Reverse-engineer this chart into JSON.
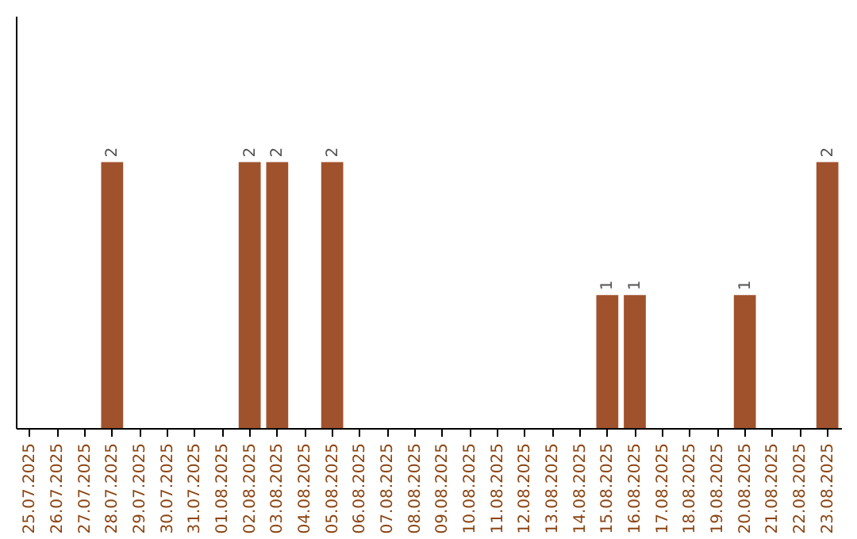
{
  "chart_data": {
    "type": "bar",
    "categories": [
      "25.07.2025",
      "26.07.2025",
      "27.07.2025",
      "28.07.2025",
      "29.07.2025",
      "30.07.2025",
      "31.07.2025",
      "01.08.2025",
      "02.08.2025",
      "03.08.2025",
      "04.08.2025",
      "05.08.2025",
      "06.08.2025",
      "07.08.2025",
      "08.08.2025",
      "09.08.2025",
      "10.08.2025",
      "11.08.2025",
      "12.08.2025",
      "13.08.2025",
      "14.08.2025",
      "15.08.2025",
      "16.08.2025",
      "17.08.2025",
      "18.08.2025",
      "19.08.2025",
      "20.08.2025",
      "21.08.2025",
      "22.08.2025",
      "23.08.2025"
    ],
    "values": [
      0,
      0,
      0,
      2,
      0,
      0,
      0,
      0,
      2,
      2,
      0,
      2,
      0,
      0,
      0,
      0,
      0,
      0,
      0,
      0,
      0,
      1,
      1,
      0,
      0,
      0,
      1,
      0,
      0,
      2
    ],
    "value_labels": [
      null,
      null,
      null,
      "2",
      null,
      null,
      null,
      null,
      "2",
      "2",
      null,
      "2",
      null,
      null,
      null,
      null,
      null,
      null,
      null,
      null,
      null,
      "1",
      "1",
      null,
      null,
      null,
      "1",
      null,
      null,
      "2"
    ],
    "color": "#a0522d",
    "ylim": [
      0,
      3.1
    ],
    "tick_labels": "x",
    "grid": false
  }
}
